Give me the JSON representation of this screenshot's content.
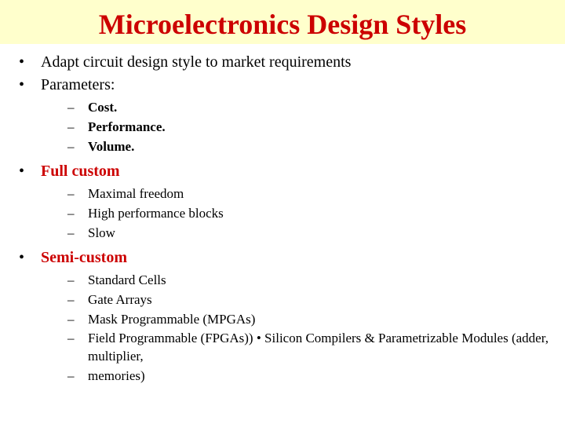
{
  "title": "Microelectronics Design Styles",
  "colors": {
    "title_bg": "#ffffcc",
    "title_fg": "#cc0000",
    "body_fg": "#000000",
    "accent": "#cc0000",
    "page_bg": "#ffffff"
  },
  "typography": {
    "title_fontsize": 36,
    "body_fontsize": 20,
    "sub_fontsize": 17,
    "font_family": "Georgia, Times New Roman, serif"
  },
  "items": [
    {
      "text": "Adapt circuit design style to market requirements"
    },
    {
      "text": "Parameters:",
      "sub_bold": true,
      "sub": [
        {
          "text": " Cost."
        },
        {
          "text": " Performance."
        },
        {
          "text": " Volume."
        }
      ]
    },
    {
      "text": "Full custom",
      "bold_red": true,
      "sub": [
        {
          "text": "Maximal freedom"
        },
        {
          "text": "High performance blocks"
        },
        {
          "text": "Slow"
        }
      ]
    },
    {
      "text": "Semi-custom",
      "bold_red": true,
      "sub": [
        {
          "text": " Standard Cells"
        },
        {
          "text": " Gate Arrays"
        },
        {
          "text": "Mask Programmable (MPGAs)"
        },
        {
          "text": "Field Programmable (FPGAs)) • Silicon Compilers & Parametrizable Modules (adder, multiplier,"
        },
        {
          "text": "memories)"
        }
      ]
    }
  ]
}
